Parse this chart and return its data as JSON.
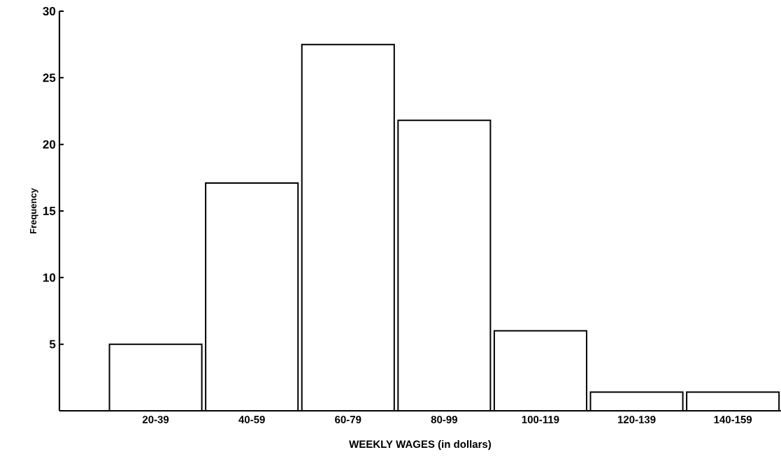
{
  "chart_data": {
    "type": "bar",
    "xlabel": "WEEKLY WAGES (in dollars)",
    "ylabel": "Frequency",
    "categories": [
      "20-39",
      "40-59",
      "60-79",
      "80-99",
      "100-119",
      "120-139",
      "140-159"
    ],
    "values": [
      5,
      17.1,
      27.5,
      21.8,
      6,
      1.4,
      1.4
    ],
    "color": "#ffffff",
    "ylim": [
      0,
      30
    ],
    "yticks": [
      5,
      10,
      15,
      20,
      25,
      30
    ],
    "grid": false
  }
}
